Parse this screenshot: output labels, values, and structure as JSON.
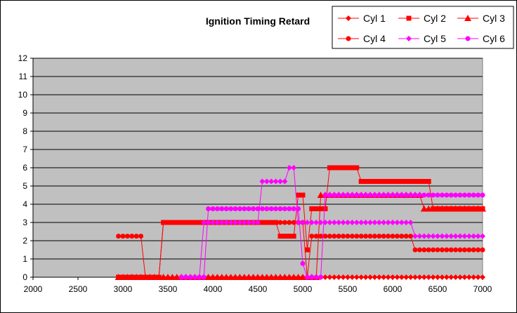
{
  "chart_data": {
    "type": "line",
    "title": "Ignition Timing Retard",
    "xlabel": "",
    "ylabel": "",
    "xlim": [
      2000,
      7000
    ],
    "ylim": [
      0,
      12
    ],
    "x_ticks": [
      2000,
      2500,
      3000,
      3500,
      4000,
      4500,
      5000,
      5500,
      6000,
      6500,
      7000
    ],
    "y_ticks": [
      0,
      1,
      2,
      3,
      4,
      5,
      6,
      7,
      8,
      9,
      10,
      11,
      12
    ],
    "grid": true,
    "plot_background": "#c0c0c0",
    "legend_position": "top-right",
    "series": [
      {
        "name": "Cyl 1",
        "color": "#ff0000",
        "marker": "diamond",
        "x": [
          2950,
          3000,
          3050,
          3100,
          3150,
          3200,
          3250,
          3300,
          3350,
          3400,
          3450,
          3500,
          3550,
          3600,
          3650,
          3700,
          3750,
          3800,
          3850,
          3900,
          3950,
          4000,
          4050,
          4100,
          4150,
          4200,
          4250,
          4300,
          4350,
          4400,
          4450,
          4500,
          4550,
          4600,
          4650,
          4700,
          4750,
          4800,
          4850,
          4900,
          4950,
          5000,
          5050,
          5100,
          5150,
          5200,
          5250,
          5300,
          5350,
          5400,
          5450,
          5500,
          5550,
          5600,
          5650,
          5700,
          5750,
          5800,
          5850,
          5900,
          5950,
          6000,
          6050,
          6100,
          6150,
          6200,
          6250,
          6300,
          6350,
          6400,
          6450,
          6500,
          6550,
          6600,
          6650,
          6700,
          6750,
          6800,
          6850,
          6900,
          6950,
          7000
        ],
        "y": [
          0,
          0,
          0,
          0,
          0,
          0,
          0,
          0,
          0,
          0,
          0,
          0,
          0,
          0,
          0,
          0,
          0,
          0,
          0,
          0,
          0,
          0,
          0,
          0,
          0,
          0,
          0,
          0,
          0,
          0,
          0,
          0,
          0,
          0,
          0,
          0,
          0,
          0,
          0,
          0,
          0,
          0,
          0,
          0,
          0,
          0,
          0,
          0,
          0,
          0,
          0,
          0,
          0,
          0,
          0,
          0,
          0,
          0,
          0,
          0,
          0,
          0,
          0,
          0,
          0,
          0,
          0,
          0,
          0,
          0,
          0,
          0,
          0,
          0,
          0,
          0,
          0,
          0,
          0,
          0,
          0,
          0
        ]
      },
      {
        "name": "Cyl 2",
        "color": "#ff0000",
        "marker": "square",
        "x": [
          2950,
          3000,
          3050,
          3100,
          3150,
          3200,
          3250,
          3300,
          3350,
          3400,
          3450,
          3500,
          3550,
          3600,
          3650,
          3700,
          3750,
          3800,
          3850,
          3900,
          3950,
          4000,
          4050,
          4100,
          4150,
          4200,
          4250,
          4300,
          4350,
          4400,
          4450,
          4500,
          4550,
          4600,
          4650,
          4700,
          4750,
          4800,
          4850,
          4900,
          4950,
          5000,
          5050,
          5100,
          5150,
          5200,
          5250,
          5300,
          5350,
          5400,
          5450,
          5500,
          5550,
          5600,
          5650,
          5700,
          5750,
          5800,
          5850,
          5900,
          5950,
          6000,
          6050,
          6100,
          6150,
          6200,
          6250,
          6300,
          6350,
          6400,
          6450,
          6500,
          6550,
          6600,
          6650,
          6700,
          6750,
          6800,
          6850,
          6900,
          6950,
          7000
        ],
        "y": [
          0,
          0,
          0,
          0,
          0,
          0,
          0,
          0,
          0,
          0,
          3,
          3,
          3,
          3,
          3,
          3,
          3,
          3,
          3,
          3,
          3,
          3,
          3,
          3,
          3,
          3,
          3,
          3,
          3,
          3,
          3,
          3,
          3,
          3,
          3,
          3,
          2.25,
          2.25,
          2.25,
          2.25,
          4.5,
          4.5,
          1.5,
          3.75,
          3.75,
          3.75,
          3.75,
          6,
          6,
          6,
          6,
          6,
          6,
          6,
          5.25,
          5.25,
          5.25,
          5.25,
          5.25,
          5.25,
          5.25,
          5.25,
          5.25,
          5.25,
          5.25,
          5.25,
          5.25,
          5.25,
          5.25,
          5.25,
          3.75,
          3.75,
          3.75,
          3.75,
          3.75,
          3.75,
          3.75,
          3.75,
          3.75,
          3.75,
          3.75,
          3.75
        ]
      },
      {
        "name": "Cyl 3",
        "color": "#ff0000",
        "marker": "triangle",
        "x": [
          2950,
          3000,
          3050,
          3100,
          3150,
          3200,
          3250,
          3300,
          3350,
          3400,
          3450,
          3500,
          3550,
          3600,
          3650,
          3700,
          3750,
          3800,
          3850,
          3900,
          3950,
          4000,
          4050,
          4100,
          4150,
          4200,
          4250,
          4300,
          4350,
          4400,
          4450,
          4500,
          4550,
          4600,
          4650,
          4700,
          4750,
          4800,
          4850,
          4900,
          4950,
          5000,
          5050,
          5100,
          5150,
          5200,
          5250,
          5300,
          5350,
          5400,
          5450,
          5500,
          5550,
          5600,
          5650,
          5700,
          5750,
          5800,
          5850,
          5900,
          5950,
          6000,
          6050,
          6100,
          6150,
          6200,
          6250,
          6300,
          6350,
          6400,
          6450,
          6500,
          6550,
          6600,
          6650,
          6700,
          6750,
          6800,
          6850,
          6900,
          6950,
          7000
        ],
        "y": [
          0,
          0,
          0,
          0,
          0,
          0,
          0,
          0,
          0,
          0,
          0,
          0,
          0,
          0,
          0,
          0,
          0,
          0,
          0,
          0,
          0,
          0,
          0,
          0,
          0,
          0,
          0,
          0,
          0,
          0,
          0,
          0,
          0,
          0,
          0,
          0,
          0,
          0,
          0,
          0,
          0,
          0,
          0,
          0,
          0,
          4.5,
          4.5,
          4.5,
          4.5,
          4.5,
          4.5,
          4.5,
          4.5,
          4.5,
          4.5,
          4.5,
          4.5,
          4.5,
          4.5,
          4.5,
          4.5,
          4.5,
          4.5,
          4.5,
          4.5,
          4.5,
          4.5,
          4.5,
          3.75,
          3.75,
          3.75,
          3.75,
          3.75,
          3.75,
          3.75,
          3.75,
          3.75,
          3.75,
          3.75,
          3.75,
          3.75,
          3.75
        ]
      },
      {
        "name": "Cyl 4",
        "color": "#ff0000",
        "marker": "circle",
        "x": [
          2950,
          3000,
          3050,
          3100,
          3150,
          3200,
          3250,
          3300,
          3350,
          3400,
          3450,
          3500,
          3550,
          3600,
          3650,
          3700,
          3750,
          3800,
          3850,
          3900,
          3950,
          4000,
          4050,
          4100,
          4150,
          4200,
          4250,
          4300,
          4350,
          4400,
          4450,
          4500,
          4550,
          4600,
          4650,
          4700,
          4750,
          4800,
          4850,
          4900,
          4950,
          5000,
          5050,
          5100,
          5150,
          5200,
          5250,
          5300,
          5350,
          5400,
          5450,
          5500,
          5550,
          5600,
          5650,
          5700,
          5750,
          5800,
          5850,
          5900,
          5950,
          6000,
          6050,
          6100,
          6150,
          6200,
          6250,
          6300,
          6350,
          6400,
          6450,
          6500,
          6550,
          6600,
          6650,
          6700,
          6750,
          6800,
          6850,
          6900,
          6950,
          7000
        ],
        "y": [
          2.25,
          2.25,
          2.25,
          2.25,
          2.25,
          2.25,
          0,
          0,
          0,
          0,
          3,
          3,
          3,
          3,
          3,
          3,
          3,
          3,
          3,
          3,
          3,
          3,
          3,
          3,
          3,
          3,
          3,
          3,
          3,
          3,
          3,
          3,
          3,
          3,
          3,
          3,
          3,
          3,
          3,
          3,
          3,
          3,
          0,
          2.25,
          2.25,
          2.25,
          2.25,
          2.25,
          2.25,
          2.25,
          2.25,
          2.25,
          2.25,
          2.25,
          2.25,
          2.25,
          2.25,
          2.25,
          2.25,
          2.25,
          2.25,
          2.25,
          2.25,
          2.25,
          2.25,
          2.25,
          1.5,
          1.5,
          1.5,
          1.5,
          1.5,
          1.5,
          1.5,
          1.5,
          1.5,
          1.5,
          1.5,
          1.5,
          1.5,
          1.5,
          1.5,
          1.5
        ]
      },
      {
        "name": "Cyl 5",
        "color": "#ff00ff",
        "marker": "diamond",
        "x": [
          3650,
          3700,
          3750,
          3800,
          3850,
          3900,
          3950,
          4000,
          4050,
          4100,
          4150,
          4200,
          4250,
          4300,
          4350,
          4400,
          4450,
          4500,
          4550,
          4600,
          4650,
          4700,
          4750,
          4800,
          4850,
          4900,
          4950,
          5000,
          5050,
          5100,
          5150,
          5200,
          5250,
          5300,
          5350,
          5400,
          5450,
          5500,
          5550,
          5600,
          5650,
          5700,
          5750,
          5800,
          5850,
          5900,
          5950,
          6000,
          6050,
          6100,
          6150,
          6200,
          6250,
          6300,
          6350,
          6400,
          6450,
          6500,
          6550,
          6600,
          6650,
          6700,
          6750,
          6800,
          6850,
          6900,
          6950,
          7000
        ],
        "y": [
          0,
          0,
          0,
          0,
          0,
          3,
          3,
          3,
          3,
          3,
          3,
          3,
          3,
          3,
          3,
          3,
          3,
          3,
          5.25,
          5.25,
          5.25,
          5.25,
          5.25,
          5.25,
          6,
          6,
          3,
          3,
          3,
          3,
          3,
          3,
          3,
          3,
          3,
          3,
          3,
          3,
          3,
          3,
          3,
          3,
          3,
          3,
          3,
          3,
          3,
          3,
          3,
          3,
          3,
          3,
          2.25,
          2.25,
          2.25,
          2.25,
          2.25,
          2.25,
          2.25,
          2.25,
          2.25,
          2.25,
          2.25,
          2.25,
          2.25,
          2.25,
          2.25,
          2.25
        ]
      },
      {
        "name": "Cyl 6",
        "color": "#ff00ff",
        "marker": "circle",
        "x": [
          3650,
          3700,
          3750,
          3800,
          3850,
          3900,
          3950,
          4000,
          4050,
          4100,
          4150,
          4200,
          4250,
          4300,
          4350,
          4400,
          4450,
          4500,
          4550,
          4600,
          4650,
          4700,
          4750,
          4800,
          4850,
          4900,
          4950,
          5000,
          5050,
          5100,
          5150,
          5200,
          5250,
          5300,
          5350,
          5400,
          5450,
          5500,
          5550,
          5600,
          5650,
          5700,
          5750,
          5800,
          5850,
          5900,
          5950,
          6000,
          6050,
          6100,
          6150,
          6200,
          6250,
          6300,
          6350,
          6400,
          6450,
          6500,
          6550,
          6600,
          6650,
          6700,
          6750,
          6800,
          6850,
          6900,
          6950,
          7000
        ],
        "y": [
          0,
          0,
          0,
          0,
          0,
          0,
          3.75,
          3.75,
          3.75,
          3.75,
          3.75,
          3.75,
          3.75,
          3.75,
          3.75,
          3.75,
          3.75,
          3.75,
          3.75,
          3.75,
          3.75,
          3.75,
          3.75,
          3.75,
          3.75,
          3.75,
          3.75,
          0.75,
          0,
          0,
          0,
          0,
          4.5,
          4.5,
          4.5,
          4.5,
          4.5,
          4.5,
          4.5,
          4.5,
          4.5,
          4.5,
          4.5,
          4.5,
          4.5,
          4.5,
          4.5,
          4.5,
          4.5,
          4.5,
          4.5,
          4.5,
          4.5,
          4.5,
          4.5,
          4.5,
          4.5,
          4.5,
          4.5,
          4.5,
          4.5,
          4.5,
          4.5,
          4.5,
          4.5,
          4.5,
          4.5,
          4.5
        ]
      }
    ]
  }
}
